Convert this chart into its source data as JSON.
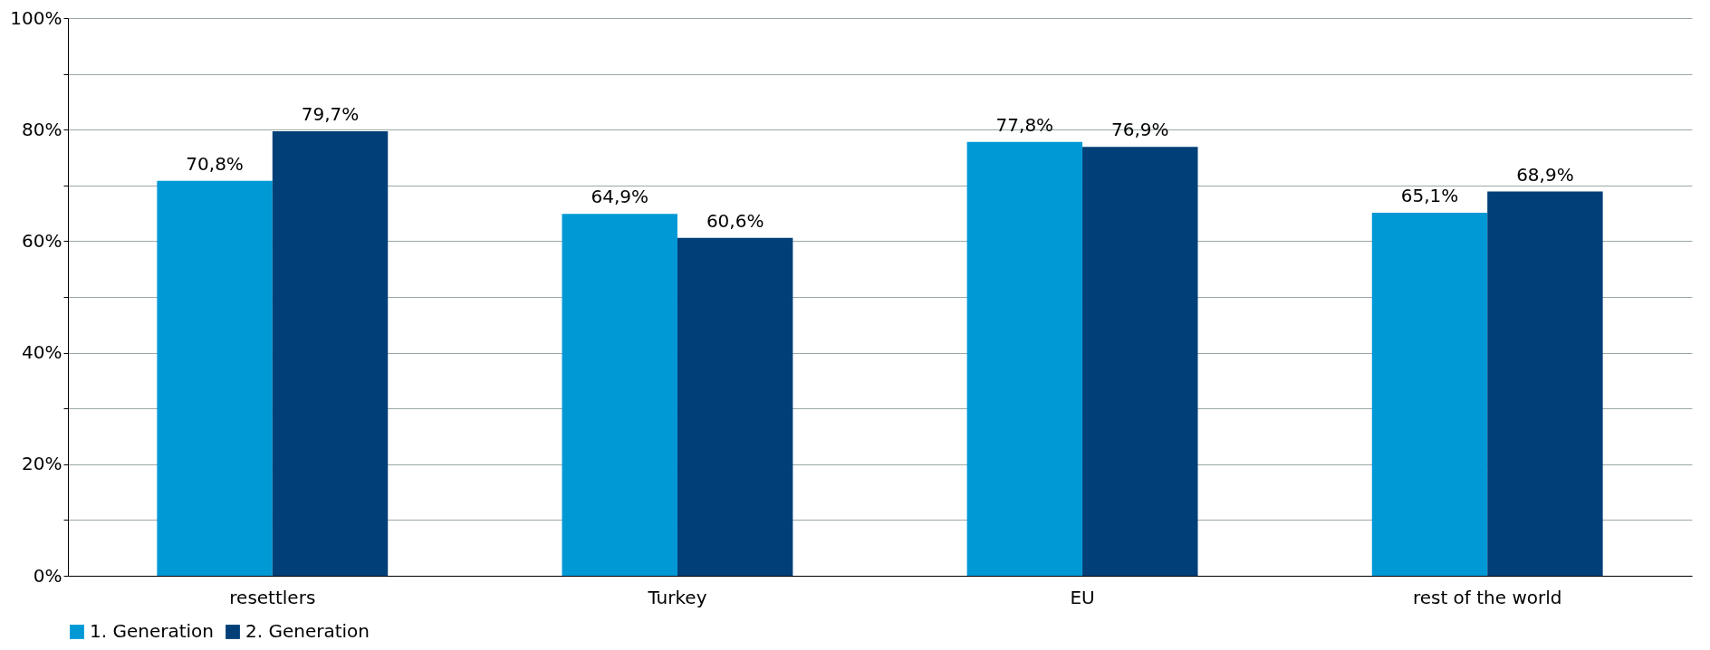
{
  "chart_data": {
    "type": "bar",
    "categories": [
      "resettlers",
      "Turkey",
      "EU",
      "rest of the world"
    ],
    "series": [
      {
        "name": "1. Generation",
        "color": "#0099d6",
        "values": [
          70.8,
          64.9,
          77.8,
          65.1
        ],
        "value_labels": [
          "70,8%",
          "64,9%",
          "77,8%",
          "65,1%"
        ]
      },
      {
        "name": "2. Generation",
        "color": "#003f78",
        "values": [
          79.7,
          60.6,
          76.9,
          68.9
        ],
        "value_labels": [
          "79,7%",
          "60,6%",
          "76,9%",
          "68,9%"
        ]
      }
    ],
    "ylim": [
      0,
      100
    ],
    "yticks": [
      {
        "value": 0,
        "label": "0%"
      },
      {
        "value": 10,
        "label": null
      },
      {
        "value": 20,
        "label": "20%"
      },
      {
        "value": 30,
        "label": null
      },
      {
        "value": 40,
        "label": "40%"
      },
      {
        "value": 50,
        "label": null
      },
      {
        "value": 60,
        "label": "60%"
      },
      {
        "value": 70,
        "label": null
      },
      {
        "value": 80,
        "label": "80%"
      },
      {
        "value": 90,
        "label": null
      },
      {
        "value": 100,
        "label": "100%"
      }
    ],
    "grid": "y",
    "legend": "bottom"
  }
}
